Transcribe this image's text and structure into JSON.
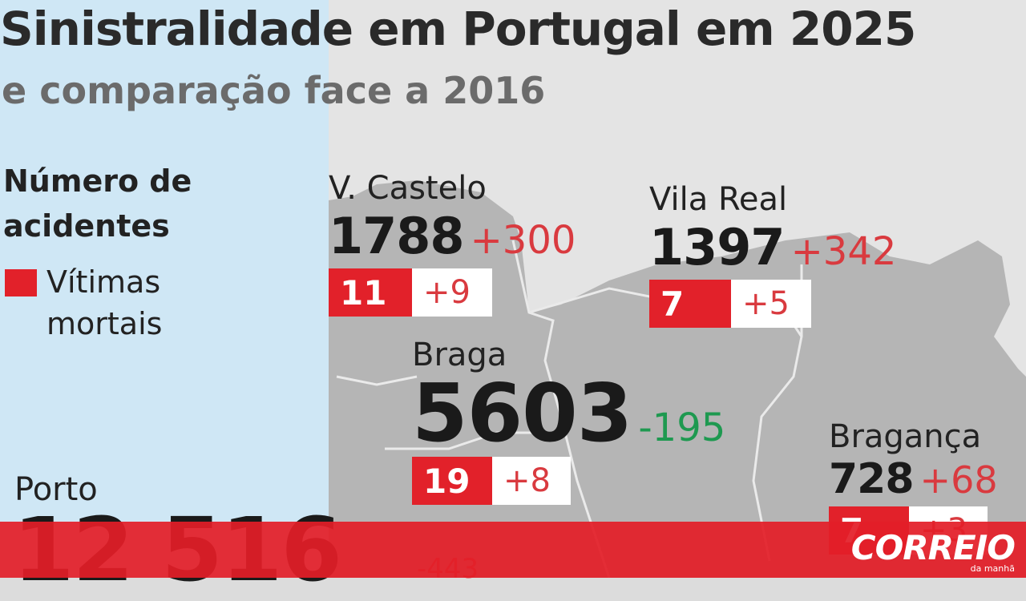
{
  "header": {
    "title": "Sinistralidade em Portugal em 2025",
    "subtitle": "e comparação face a 2016"
  },
  "legend": {
    "title": "Número de acidentes",
    "deaths_label": "Vítimas mortais",
    "deaths_color": "#e2212a"
  },
  "districts": {
    "v_castelo": {
      "name": "V. Castelo",
      "accidents": "1788",
      "accidents_change": "+300",
      "deaths": "11",
      "deaths_change": "+9"
    },
    "vila_real": {
      "name": "Vila Real",
      "accidents": "1397",
      "accidents_change": "+342",
      "deaths": "7",
      "deaths_change": "+5"
    },
    "braga": {
      "name": "Braga",
      "accidents": "5603",
      "accidents_change": "-195",
      "deaths": "19",
      "deaths_change": "+8"
    },
    "braganca": {
      "name": "Bragança",
      "accidents": "728",
      "accidents_change": "+68",
      "deaths": "7",
      "deaths_change": "+3"
    },
    "porto": {
      "name": "Porto",
      "accidents": "12 516",
      "accidents_change": "-443"
    }
  },
  "colors": {
    "sea": "#cfe7f5",
    "land": "#b5b5b5",
    "increase": "#d93a3f",
    "decrease": "#1e9950",
    "footer": "#e31e28"
  },
  "footer": {
    "logo": "CORREIO",
    "logo_sub": "da manhã"
  }
}
